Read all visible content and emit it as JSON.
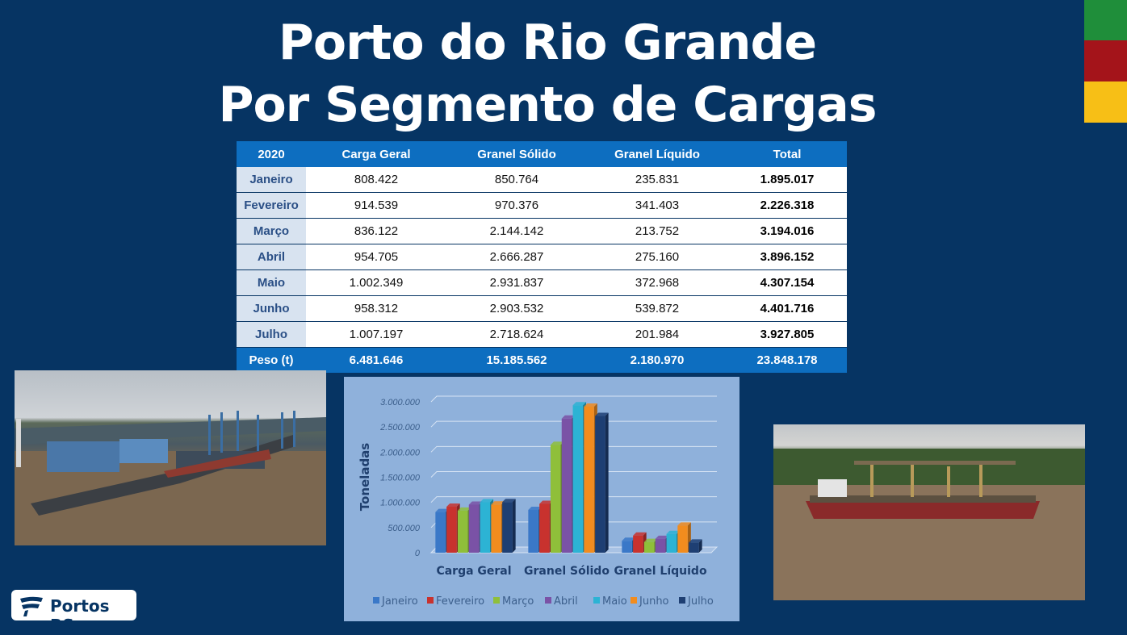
{
  "title": {
    "line1": "Porto do Rio Grande",
    "line2": "Por Segmento de Cargas"
  },
  "flag_colors": [
    "#1f8e3a",
    "#a4141a",
    "#f7bf16"
  ],
  "table": {
    "headers": [
      "2020",
      "Carga Geral",
      "Granel Sólido",
      "Granel Líquido",
      "Total"
    ],
    "rows": [
      [
        "Janeiro",
        "808.422",
        "850.764",
        "235.831",
        "1.895.017"
      ],
      [
        "Fevereiro",
        "914.539",
        "970.376",
        "341.403",
        "2.226.318"
      ],
      [
        "Março",
        "836.122",
        "2.144.142",
        "213.752",
        "3.194.016"
      ],
      [
        "Abril",
        "954.705",
        "2.666.287",
        "275.160",
        "3.896.152"
      ],
      [
        "Maio",
        "1.002.349",
        "2.931.837",
        "372.968",
        "4.307.154"
      ],
      [
        "Junho",
        "958.312",
        "2.903.532",
        "539.872",
        "4.401.716"
      ],
      [
        "Julho",
        "1.007.197",
        "2.718.624",
        "201.984",
        "3.927.805"
      ]
    ],
    "footer": [
      "Peso (t)",
      "6.481.646",
      "15.185.562",
      "2.180.970",
      "23.848.178"
    ]
  },
  "chart_data": {
    "type": "bar",
    "categories": [
      "Carga Geral",
      "Granel Sólido",
      "Granel Líquido"
    ],
    "ylabel": "Toneladas",
    "xlabel": "",
    "ylim": [
      0,
      3000000
    ],
    "ytick_labels": [
      "0",
      "500.000",
      "1.000.000",
      "1.500.000",
      "2.000.000",
      "2.500.000",
      "3.000.000"
    ],
    "ytick_values": [
      0,
      500000,
      1000000,
      1500000,
      2000000,
      2500000,
      3000000
    ],
    "legend_position": "bottom",
    "grid": true,
    "series": [
      {
        "name": "Janeiro",
        "color": "#3a78c8",
        "values": [
          808422,
          850764,
          235831
        ]
      },
      {
        "name": "Fevereiro",
        "color": "#c8322e",
        "values": [
          914539,
          970376,
          341403
        ]
      },
      {
        "name": "Março",
        "color": "#8fbf3a",
        "values": [
          836122,
          2144142,
          213752
        ]
      },
      {
        "name": "Abril",
        "color": "#7a52a6",
        "values": [
          954705,
          2666287,
          275160
        ]
      },
      {
        "name": "Maio",
        "color": "#2cb3d4",
        "values": [
          1002349,
          2931837,
          372968
        ]
      },
      {
        "name": "Junho",
        "color": "#f28c1e",
        "values": [
          958312,
          2903532,
          539872
        ]
      },
      {
        "name": "Julho",
        "color": "#1e3f73",
        "values": [
          1007197,
          2718624,
          201984
        ]
      }
    ]
  },
  "logo": {
    "text": "Portos RS"
  }
}
